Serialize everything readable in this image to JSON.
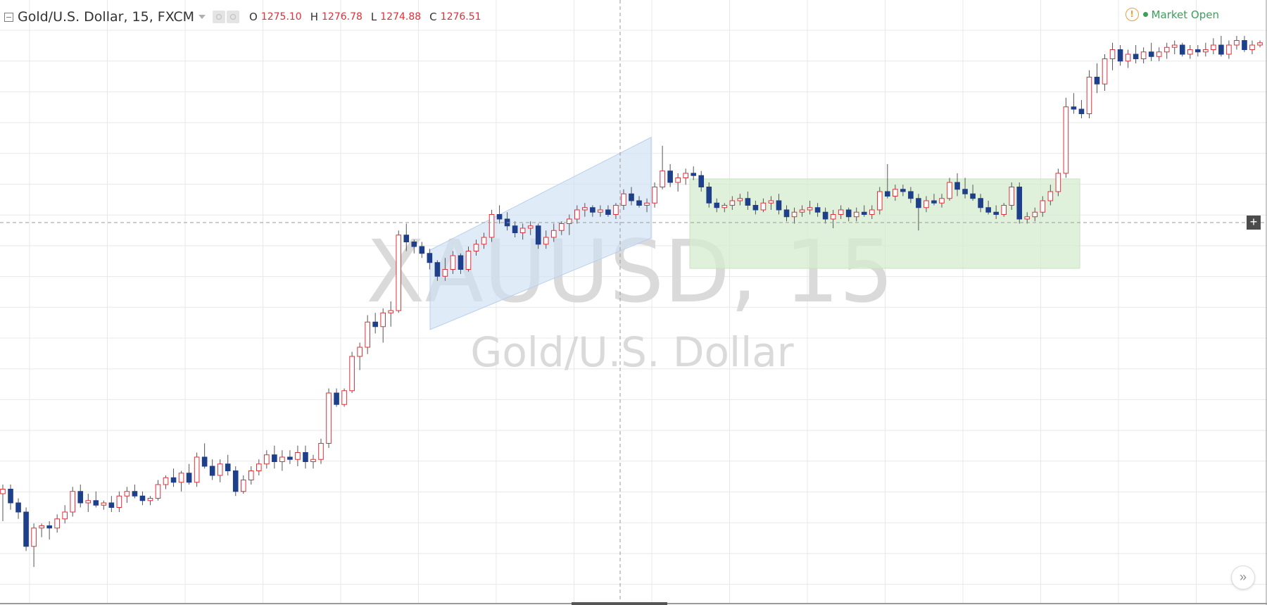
{
  "legend": {
    "symbol_title": "Gold/U.S. Dollar, 15, FXCM",
    "open_label": "O",
    "open_value": "1275.10",
    "high_label": "H",
    "high_value": "1276.78",
    "low_label": "L",
    "low_value": "1274.88",
    "close_label": "C",
    "close_value": "1276.51"
  },
  "market_status": {
    "label": "Market Open",
    "warning_glyph": "!"
  },
  "watermark": {
    "symbol": "XAUUSD, 15",
    "description": "Gold/U.S. Dollar"
  },
  "buttons": {
    "plus_glyph": "+",
    "scroll_glyph": "»"
  },
  "colors": {
    "up_candle": "#e0303a",
    "down_candle": "#1e3f8a",
    "wick": "#555555",
    "grid": "#e8e8e8",
    "channel_fill": "#cfe0f5",
    "range_fill": "#d6eccf",
    "watermark": "#dadada",
    "market_open": "#3aa05a"
  },
  "drawings": [
    {
      "type": "parallel-channel"
    },
    {
      "type": "rectangle"
    }
  ],
  "chart_data": {
    "type": "candlestick",
    "symbol": "XAUUSD",
    "interval": "15",
    "exchange": "FXCM",
    "last_bar": {
      "open": 1275.1,
      "high": 1276.78,
      "low": 1274.88,
      "close": 1276.51
    },
    "bars_ohlc": [
      [
        1266.8,
        1267.2,
        1265.6,
        1267.0
      ],
      [
        1267.0,
        1267.2,
        1266.1,
        1266.4
      ],
      [
        1266.4,
        1266.6,
        1265.7,
        1266.0
      ],
      [
        1266.0,
        1266.2,
        1264.3,
        1264.5
      ],
      [
        1264.5,
        1265.5,
        1263.6,
        1265.3
      ],
      [
        1265.3,
        1265.5,
        1264.9,
        1265.4
      ],
      [
        1265.4,
        1265.6,
        1264.8,
        1265.3
      ],
      [
        1265.3,
        1265.9,
        1265.1,
        1265.7
      ],
      [
        1265.7,
        1266.3,
        1265.5,
        1266.0
      ],
      [
        1266.0,
        1267.1,
        1265.8,
        1266.9
      ],
      [
        1266.9,
        1267.2,
        1266.2,
        1266.4
      ],
      [
        1266.4,
        1266.8,
        1266.0,
        1266.5
      ],
      [
        1266.5,
        1266.9,
        1266.2,
        1266.3
      ],
      [
        1266.3,
        1266.5,
        1266.1,
        1266.4
      ],
      [
        1266.4,
        1266.7,
        1266.0,
        1266.2
      ],
      [
        1266.2,
        1266.9,
        1266.0,
        1266.7
      ],
      [
        1266.7,
        1267.1,
        1266.4,
        1266.9
      ],
      [
        1266.9,
        1267.2,
        1266.6,
        1266.7
      ],
      [
        1266.7,
        1266.9,
        1266.3,
        1266.5
      ],
      [
        1266.5,
        1266.7,
        1266.3,
        1266.6
      ],
      [
        1266.6,
        1267.4,
        1266.5,
        1267.2
      ],
      [
        1267.2,
        1267.6,
        1267.0,
        1267.5
      ],
      [
        1267.5,
        1267.9,
        1267.1,
        1267.3
      ],
      [
        1267.3,
        1267.8,
        1266.9,
        1267.7
      ],
      [
        1267.7,
        1268.1,
        1267.2,
        1267.3
      ],
      [
        1267.3,
        1268.6,
        1267.1,
        1268.4
      ],
      [
        1268.4,
        1269.0,
        1267.9,
        1268.0
      ],
      [
        1268.0,
        1268.3,
        1267.4,
        1267.6
      ],
      [
        1267.6,
        1268.3,
        1267.3,
        1268.1
      ],
      [
        1268.1,
        1268.5,
        1267.6,
        1267.8
      ],
      [
        1267.8,
        1268.0,
        1266.7,
        1266.9
      ],
      [
        1266.9,
        1267.6,
        1266.8,
        1267.4
      ],
      [
        1267.4,
        1268.0,
        1267.2,
        1267.8
      ],
      [
        1267.8,
        1268.3,
        1267.6,
        1268.1
      ],
      [
        1268.1,
        1268.7,
        1267.9,
        1268.5
      ],
      [
        1268.5,
        1268.9,
        1267.9,
        1268.2
      ],
      [
        1268.2,
        1268.7,
        1267.8,
        1268.4
      ],
      [
        1268.4,
        1268.7,
        1268.1,
        1268.3
      ],
      [
        1268.3,
        1268.9,
        1268.0,
        1268.6
      ],
      [
        1268.6,
        1268.9,
        1267.9,
        1268.2
      ],
      [
        1268.2,
        1268.5,
        1267.9,
        1268.3
      ],
      [
        1268.3,
        1269.2,
        1268.1,
        1269.0
      ],
      [
        1269.0,
        1271.4,
        1268.8,
        1271.2
      ],
      [
        1271.2,
        1271.4,
        1270.6,
        1270.7
      ],
      [
        1270.7,
        1271.4,
        1270.6,
        1271.3
      ],
      [
        1271.3,
        1273.0,
        1271.2,
        1272.8
      ],
      [
        1272.8,
        1273.4,
        1272.2,
        1273.2
      ],
      [
        1273.2,
        1274.6,
        1272.9,
        1274.3
      ],
      [
        1274.3,
        1274.7,
        1273.8,
        1274.1
      ],
      [
        1274.1,
        1274.9,
        1273.4,
        1274.7
      ],
      [
        1274.7,
        1275.2,
        1274.1,
        1274.8
      ],
      [
        1274.8,
        1278.3,
        1274.7,
        1278.1
      ],
      [
        1278.1,
        1278.6,
        1277.4,
        1277.8
      ],
      [
        1277.8,
        1277.9,
        1277.3,
        1277.6
      ],
      [
        1277.6,
        1277.8,
        1277.1,
        1277.3
      ],
      [
        1277.3,
        1277.5,
        1276.6,
        1276.9
      ],
      [
        1276.9,
        1277.0,
        1276.1,
        1276.3
      ],
      [
        1276.3,
        1277.1,
        1276.1,
        1276.6
      ],
      [
        1276.6,
        1277.4,
        1276.4,
        1277.2
      ],
      [
        1277.2,
        1277.3,
        1276.4,
        1276.6
      ],
      [
        1276.6,
        1277.6,
        1276.5,
        1277.4
      ],
      [
        1277.4,
        1277.9,
        1277.2,
        1277.7
      ],
      [
        1277.7,
        1278.2,
        1277.5,
        1278.0
      ],
      [
        1278.0,
        1279.2,
        1277.8,
        1279.0
      ],
      [
        1279.0,
        1279.4,
        1278.6,
        1278.8
      ],
      [
        1278.8,
        1279.1,
        1278.3,
        1278.5
      ],
      [
        1278.5,
        1278.7,
        1278.0,
        1278.2
      ],
      [
        1278.2,
        1278.6,
        1277.9,
        1278.4
      ],
      [
        1278.4,
        1278.7,
        1278.1,
        1278.5
      ],
      [
        1278.5,
        1278.6,
        1277.5,
        1277.7
      ],
      [
        1277.7,
        1278.3,
        1277.5,
        1278.0
      ],
      [
        1278.0,
        1278.6,
        1277.8,
        1278.3
      ],
      [
        1278.3,
        1278.7,
        1278.1,
        1278.6
      ],
      [
        1278.6,
        1279.0,
        1278.1,
        1278.8
      ],
      [
        1278.8,
        1279.4,
        1278.6,
        1279.2
      ],
      [
        1279.2,
        1279.5,
        1278.9,
        1279.3
      ],
      [
        1279.3,
        1279.4,
        1278.9,
        1279.1
      ],
      [
        1279.1,
        1279.4,
        1278.9,
        1279.2
      ],
      [
        1279.2,
        1279.4,
        1278.9,
        1279.0
      ],
      [
        1279.0,
        1279.5,
        1278.8,
        1279.4
      ],
      [
        1279.4,
        1280.1,
        1279.2,
        1279.9
      ],
      [
        1279.9,
        1280.2,
        1279.4,
        1279.6
      ],
      [
        1279.6,
        1279.8,
        1279.3,
        1279.4
      ],
      [
        1279.4,
        1279.7,
        1279.1,
        1279.5
      ],
      [
        1279.5,
        1280.4,
        1279.3,
        1280.2
      ],
      [
        1280.2,
        1282.0,
        1280.1,
        1280.9
      ],
      [
        1280.9,
        1281.2,
        1280.2,
        1280.4
      ],
      [
        1280.4,
        1280.8,
        1280.0,
        1280.6
      ],
      [
        1280.6,
        1281.0,
        1280.3,
        1280.8
      ],
      [
        1280.8,
        1281.1,
        1280.5,
        1280.7
      ],
      [
        1280.7,
        1280.9,
        1280.0,
        1280.2
      ],
      [
        1280.2,
        1280.4,
        1279.3,
        1279.5
      ],
      [
        1279.5,
        1279.7,
        1279.1,
        1279.3
      ],
      [
        1279.3,
        1279.5,
        1279.1,
        1279.4
      ],
      [
        1279.4,
        1279.8,
        1279.2,
        1279.6
      ],
      [
        1279.6,
        1279.9,
        1279.4,
        1279.7
      ],
      [
        1279.7,
        1280.0,
        1279.2,
        1279.4
      ],
      [
        1279.4,
        1279.6,
        1279.0,
        1279.2
      ],
      [
        1279.2,
        1279.7,
        1279.1,
        1279.5
      ],
      [
        1279.5,
        1279.8,
        1279.2,
        1279.6
      ],
      [
        1279.6,
        1279.9,
        1279.0,
        1279.2
      ],
      [
        1279.2,
        1279.4,
        1278.7,
        1278.9
      ],
      [
        1278.9,
        1279.3,
        1278.6,
        1279.1
      ],
      [
        1279.1,
        1279.4,
        1278.9,
        1279.2
      ],
      [
        1279.2,
        1279.6,
        1279.0,
        1279.3
      ],
      [
        1279.3,
        1279.5,
        1278.9,
        1279.1
      ],
      [
        1279.1,
        1279.3,
        1278.6,
        1278.8
      ],
      [
        1278.8,
        1279.2,
        1278.4,
        1279.0
      ],
      [
        1279.0,
        1279.4,
        1278.8,
        1279.2
      ],
      [
        1279.2,
        1279.3,
        1278.7,
        1278.9
      ],
      [
        1278.9,
        1279.3,
        1278.7,
        1279.1
      ],
      [
        1279.1,
        1279.4,
        1278.9,
        1279.0
      ],
      [
        1279.0,
        1279.4,
        1278.8,
        1279.2
      ],
      [
        1279.2,
        1280.2,
        1279.0,
        1280.0
      ],
      [
        1280.0,
        1281.2,
        1279.7,
        1279.8
      ],
      [
        1279.8,
        1280.3,
        1279.6,
        1280.1
      ],
      [
        1280.1,
        1280.3,
        1279.8,
        1280.0
      ],
      [
        1280.0,
        1280.2,
        1279.5,
        1279.7
      ],
      [
        1279.7,
        1279.9,
        1278.3,
        1279.3
      ],
      [
        1279.3,
        1279.8,
        1279.1,
        1279.6
      ],
      [
        1279.6,
        1279.9,
        1279.4,
        1279.5
      ],
      [
        1279.5,
        1279.9,
        1279.3,
        1279.7
      ],
      [
        1279.7,
        1280.6,
        1279.6,
        1280.4
      ],
      [
        1280.4,
        1280.8,
        1279.8,
        1280.1
      ],
      [
        1280.1,
        1280.6,
        1279.7,
        1279.9
      ],
      [
        1279.9,
        1280.3,
        1279.6,
        1279.7
      ],
      [
        1279.7,
        1279.9,
        1279.1,
        1279.3
      ],
      [
        1279.3,
        1279.6,
        1279.0,
        1279.1
      ],
      [
        1279.1,
        1279.4,
        1278.8,
        1279.0
      ],
      [
        1279.0,
        1279.5,
        1278.9,
        1279.4
      ],
      [
        1279.4,
        1280.4,
        1279.2,
        1280.2
      ],
      [
        1280.2,
        1280.4,
        1278.6,
        1278.8
      ],
      [
        1278.8,
        1279.1,
        1278.6,
        1278.9
      ],
      [
        1278.9,
        1279.3,
        1278.7,
        1279.1
      ],
      [
        1279.1,
        1279.8,
        1278.9,
        1279.6
      ],
      [
        1279.6,
        1280.3,
        1279.4,
        1280.0
      ],
      [
        1280.0,
        1281.0,
        1279.8,
        1280.8
      ],
      [
        1280.8,
        1284.1,
        1280.6,
        1283.7
      ],
      [
        1283.7,
        1284.3,
        1283.4,
        1283.6
      ],
      [
        1283.6,
        1284.0,
        1283.2,
        1283.4
      ],
      [
        1283.4,
        1285.3,
        1283.2,
        1285.0
      ],
      [
        1285.0,
        1285.6,
        1284.3,
        1284.7
      ],
      [
        1284.7,
        1286.0,
        1284.4,
        1285.8
      ],
      [
        1285.8,
        1286.5,
        1285.3,
        1286.2
      ],
      [
        1286.2,
        1286.4,
        1285.5,
        1285.7
      ],
      [
        1285.7,
        1286.2,
        1285.4,
        1286.0
      ],
      [
        1286.0,
        1286.4,
        1285.6,
        1285.8
      ],
      [
        1285.8,
        1286.3,
        1285.6,
        1286.1
      ],
      [
        1286.1,
        1286.5,
        1285.7,
        1285.9
      ],
      [
        1285.9,
        1286.3,
        1285.7,
        1286.1
      ],
      [
        1286.1,
        1286.5,
        1285.8,
        1286.3
      ],
      [
        1286.3,
        1286.6,
        1286.0,
        1286.4
      ],
      [
        1286.4,
        1286.5,
        1285.9,
        1286.0
      ],
      [
        1286.0,
        1286.4,
        1285.8,
        1286.2
      ],
      [
        1286.2,
        1286.4,
        1285.9,
        1286.1
      ],
      [
        1286.1,
        1286.5,
        1285.9,
        1286.2
      ],
      [
        1286.2,
        1286.7,
        1286.0,
        1286.4
      ],
      [
        1286.4,
        1286.8,
        1285.9,
        1286.0
      ],
      [
        1286.0,
        1286.6,
        1285.8,
        1286.4
      ],
      [
        1286.4,
        1286.8,
        1286.2,
        1286.6
      ],
      [
        1286.6,
        1286.8,
        1286.1,
        1286.2
      ],
      [
        1286.2,
        1286.6,
        1286.0,
        1286.4
      ],
      [
        1286.4,
        1286.6,
        1286.3,
        1286.5
      ]
    ]
  }
}
